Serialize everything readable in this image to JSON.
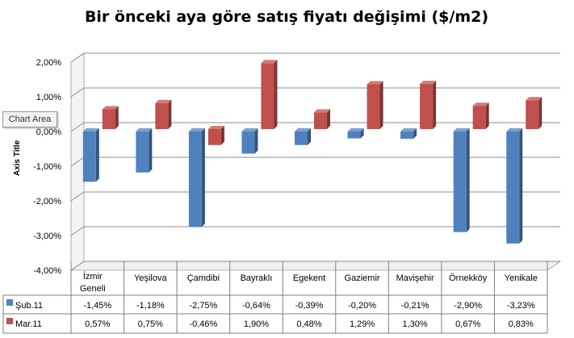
{
  "chart_data": {
    "type": "bar",
    "title": "Bir önceki aya göre satış fiyatı değişimi ($/m2)",
    "ylabel": "Axis Title",
    "ylim": [
      -4,
      2
    ],
    "ytick_labels": [
      "2,00%",
      "1,00%",
      "0,00%",
      "-1,00%",
      "-2,00%",
      "-3,00%",
      "-4,00%"
    ],
    "categories": [
      "İzmir Geneli",
      "Yeşilova",
      "Çamdibi",
      "Bayraklı",
      "Egekent",
      "Gaziemir",
      "Mavişehir",
      "Örnekköy",
      "Yenikale"
    ],
    "series": [
      {
        "name": "Şub.11",
        "color": "#4f81bd",
        "values": [
          -1.45,
          -1.18,
          -2.75,
          -0.64,
          -0.39,
          -0.2,
          -0.21,
          -2.9,
          -3.23
        ],
        "labels": [
          "-1,45%",
          "-1,18%",
          "-2,75%",
          "-0,64%",
          "-0,39%",
          "-0,20%",
          "-0,21%",
          "-2,90%",
          "-3,23%"
        ]
      },
      {
        "name": "Mar.11",
        "color": "#c0504d",
        "values": [
          0.57,
          0.75,
          -0.46,
          1.9,
          0.48,
          1.29,
          1.3,
          0.67,
          0.83
        ],
        "labels": [
          "0,57%",
          "0,75%",
          "-0,46%",
          "1,90%",
          "0,48%",
          "1,29%",
          "1,30%",
          "0,67%",
          "0,83%"
        ]
      }
    ],
    "data_table": true,
    "grid": true,
    "legend": "data-table"
  },
  "tooltip": {
    "text": "Chart Area"
  }
}
